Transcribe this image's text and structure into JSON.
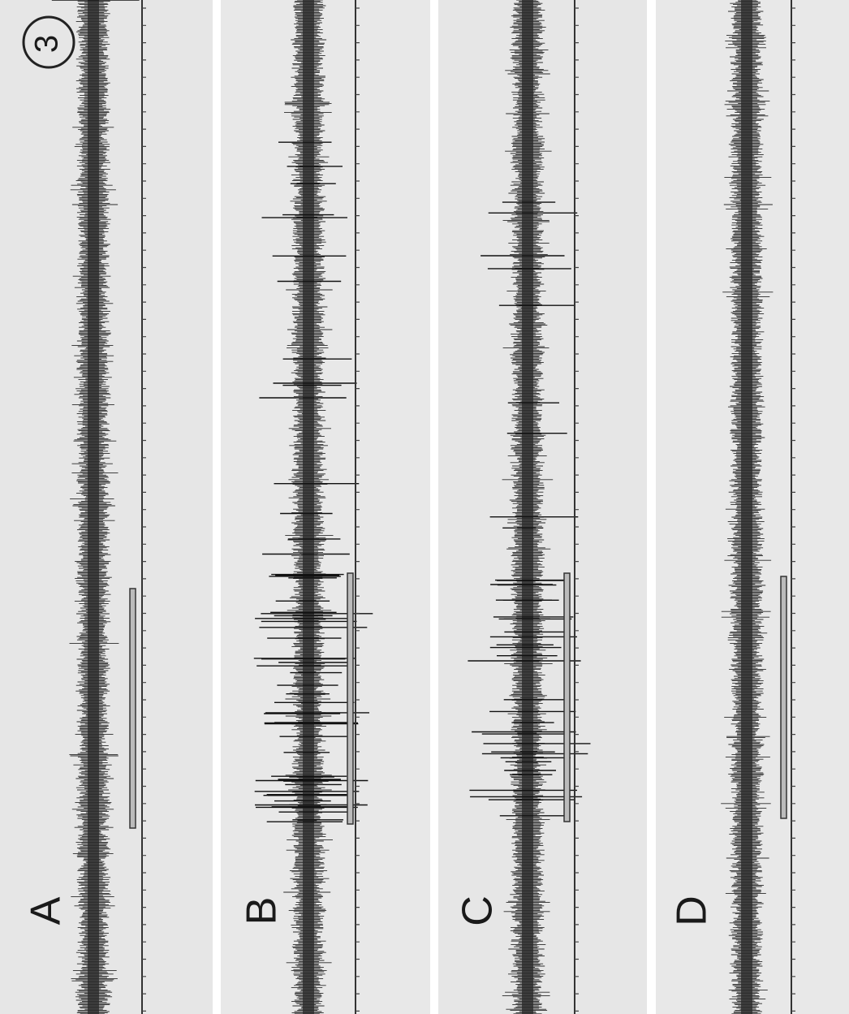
{
  "figure_number": "3",
  "panels": [
    {
      "label": "A"
    },
    {
      "label": "B"
    },
    {
      "label": "C"
    },
    {
      "label": "D"
    }
  ]
}
